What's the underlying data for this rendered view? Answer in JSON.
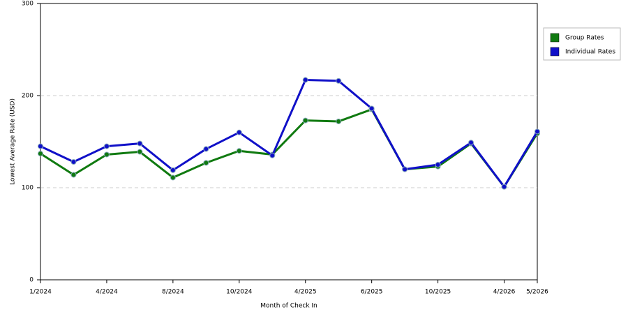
{
  "chart_data": {
    "type": "line",
    "x_label": "Month of Check In",
    "y_label": "Lowest Average Rate (USD)",
    "categories": [
      "1/2024",
      null,
      "4/2024",
      null,
      "8/2024",
      null,
      "10/2024",
      null,
      "4/2025",
      null,
      "6/2025",
      null,
      "10/2025",
      null,
      "4/2026",
      "5/2026"
    ],
    "series": [
      {
        "name": "Group Rates",
        "color": "#107a10",
        "values": [
          137,
          114,
          136,
          139,
          111,
          127,
          140,
          136,
          173,
          172,
          185,
          120,
          123,
          148,
          101,
          159
        ]
      },
      {
        "name": "Individual Rates",
        "color": "#1010c8",
        "values": [
          145,
          128,
          145,
          148,
          119,
          142,
          160,
          135,
          217,
          216,
          186,
          120,
          125,
          149,
          101,
          161
        ]
      }
    ],
    "ylim": [
      0,
      300
    ],
    "yticks": [
      0,
      100,
      200,
      300
    ],
    "grid": true
  }
}
